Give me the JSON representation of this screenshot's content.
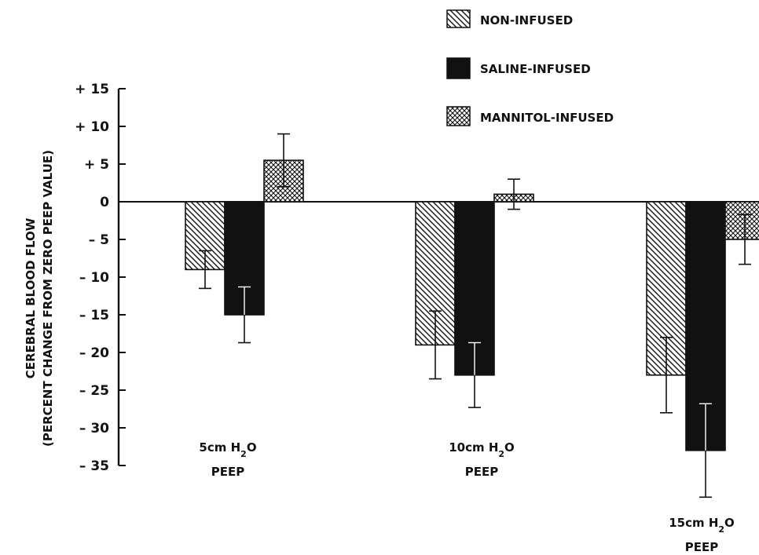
{
  "chart_data": {
    "type": "bar",
    "title": "",
    "xlabel": "",
    "ylabel": [
      "CEREBRAL BLOOD FLOW",
      "(PERCENT CHANGE FROM ZERO PEEP VALUE)"
    ],
    "ylim": [
      -35,
      15
    ],
    "yticks": [
      15,
      10,
      5,
      0,
      -5,
      -10,
      -15,
      -20,
      -25,
      -30,
      -35
    ],
    "ytick_labels": [
      "+ 15",
      "+ 10",
      "+ 5",
      "0",
      "– 5",
      "– 10",
      "– 15",
      "– 20",
      "– 25",
      "– 30",
      "– 35"
    ],
    "grid": false,
    "legend_position": "top-right",
    "categories": [
      {
        "line1": "5cm H",
        "sub": "2",
        "tail": "O",
        "line2": "PEEP"
      },
      {
        "line1": "10cm H",
        "sub": "2",
        "tail": "O",
        "line2": "PEEP"
      },
      {
        "line1": "15cm H",
        "sub": "2",
        "tail": "O",
        "line2": "PEEP"
      }
    ],
    "series": [
      {
        "name": "NON-INFUSED",
        "pattern": "diagonal-hatch",
        "values": [
          -9,
          -19,
          -23
        ],
        "errors": [
          2.5,
          4.5,
          5
        ]
      },
      {
        "name": "SALINE-INFUSED",
        "pattern": "solid-black",
        "values": [
          -15,
          -23,
          -33
        ],
        "errors": [
          3.7,
          4.3,
          6.2
        ]
      },
      {
        "name": "MANNITOL-INFUSED",
        "pattern": "cross-hatch",
        "values": [
          5.5,
          1,
          -5
        ],
        "errors": [
          3.5,
          2,
          3.3
        ]
      }
    ]
  }
}
